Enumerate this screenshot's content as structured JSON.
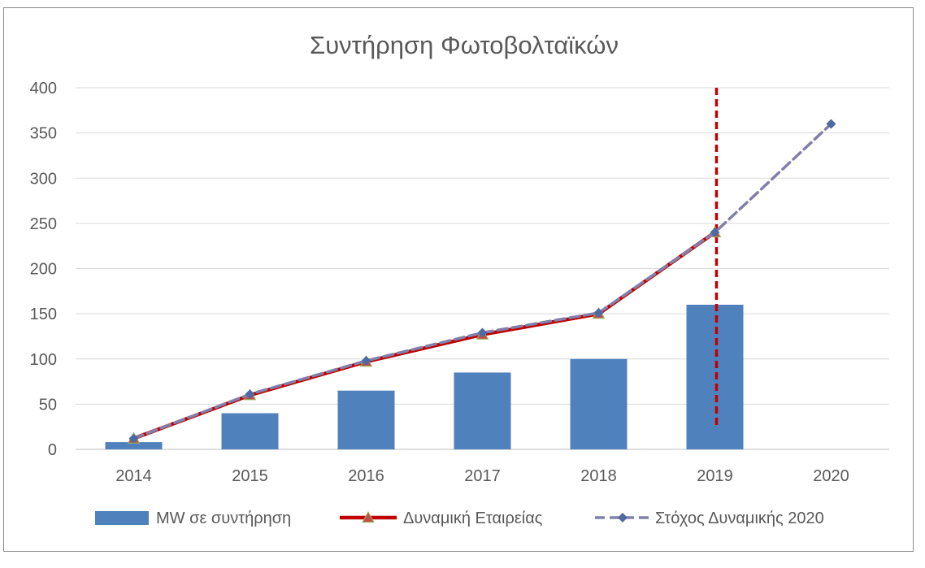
{
  "chart_data": {
    "type": "bar",
    "title": "Συντήρηση Φωτοβολταϊκών",
    "categories": [
      "2014",
      "2015",
      "2016",
      "2017",
      "2018",
      "2019",
      "2020"
    ],
    "ylim": [
      0,
      400
    ],
    "yticks": [
      0,
      50,
      100,
      150,
      200,
      250,
      300,
      350,
      400
    ],
    "grid": true,
    "legend_position": "bottom",
    "series": [
      {
        "name": "MW σε συντήρηση",
        "type": "bar",
        "color": "#4f81bd",
        "values": [
          8,
          40,
          65,
          85,
          100,
          160,
          null
        ]
      },
      {
        "name": "Δυναμική Εταιρείας",
        "type": "line",
        "color": "#c00000",
        "marker": "triangle",
        "marker_color": "#c0504d",
        "values": [
          12,
          60,
          97,
          127,
          150,
          240,
          null
        ]
      },
      {
        "name": "Στόχος Δυναμικής 2020",
        "type": "line",
        "style": "dashed",
        "color": "#8080aa",
        "marker": "diamond",
        "marker_color": "#4f6aa0",
        "values": [
          12,
          61,
          98,
          129,
          151,
          240,
          360
        ]
      }
    ],
    "annotations": [
      {
        "type": "vertical-dashed-line",
        "x": "2019",
        "y_from": 23,
        "y_to": 400,
        "color": "#c00000"
      }
    ]
  }
}
